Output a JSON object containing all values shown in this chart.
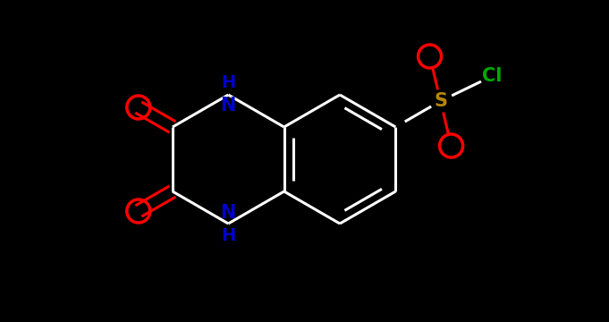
{
  "background_color": "#000000",
  "bond_color": "#ffffff",
  "atom_colors": {
    "O": "#ff0000",
    "N": "#0000cd",
    "S": "#b8860b",
    "Cl": "#00aa00",
    "C": "#ffffff",
    "H": "#0000cd"
  },
  "figsize": [
    6.81,
    3.6
  ],
  "dpi": 100,
  "xlim": [
    0,
    6.81
  ],
  "ylim": [
    0,
    3.6
  ]
}
